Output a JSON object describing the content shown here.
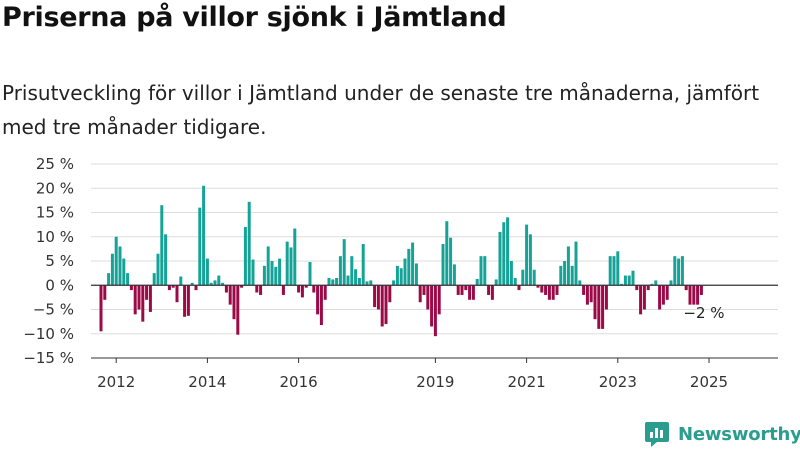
{
  "title": "Priserna på villor sjönk i Jämtland",
  "subtitle": "Prisutveckling för villor i Jämtland under de senaste tre månaderna, jämfört med tre månader tidigare.",
  "brand": "Newsworthy",
  "colors": {
    "positive": "#16a397",
    "negative": "#9b0a47",
    "axis": "#333333",
    "grid": "#dddddd",
    "brand": "#2a9d8f"
  },
  "chart_data": {
    "type": "bar",
    "y_unit": "%",
    "ylim": [
      -15,
      25
    ],
    "y_ticks": [
      25,
      20,
      15,
      10,
      5,
      0,
      -5,
      -10,
      -15
    ],
    "y_tick_labels": [
      "25 %",
      "20 %",
      "15 %",
      "10 %",
      "5 %",
      "0 %",
      "−5 %",
      "−10 %",
      "−15 %"
    ],
    "x_tick_labels": [
      "2012",
      "2014",
      "2016",
      "2019",
      "2021",
      "2023",
      "2025"
    ],
    "x_tick_index": [
      4,
      28,
      52,
      88,
      112,
      136,
      160
    ],
    "grid": true,
    "last_value_label": "−2 %",
    "values": [
      -9.5,
      -3,
      2.5,
      6.5,
      10,
      8,
      5.5,
      2.5,
      -1,
      -6,
      -5,
      -7.5,
      -3,
      -5.5,
      2.5,
      6.5,
      16.5,
      10.5,
      -1,
      -0.5,
      -3.5,
      1.8,
      -6.5,
      -6.3,
      0.5,
      -1,
      16,
      20.5,
      5.5,
      0.5,
      1,
      2,
      0.5,
      -1.5,
      -4,
      -7,
      -10.2,
      -0.5,
      12,
      17.2,
      5.3,
      -1.5,
      -2,
      4,
      8,
      5,
      3.8,
      5.5,
      -2,
      9,
      7.8,
      11.7,
      -1.5,
      -2.5,
      -0.5,
      4.8,
      -1.5,
      -6,
      -8.2,
      -3,
      1.5,
      1.2,
      1.5,
      6,
      9.5,
      2,
      6,
      3.3,
      1.5,
      8.5,
      0.8,
      1,
      -4.5,
      -5,
      -8.5,
      -8,
      -3.5,
      1,
      4,
      3.5,
      5.5,
      7.5,
      8.8,
      4.5,
      -3.5,
      -2,
      -5,
      -8.5,
      -10.5,
      -6,
      8.5,
      13.2,
      9.8,
      4.3,
      -2,
      -2,
      -1,
      -3,
      -3,
      1.3,
      6,
      6,
      -2,
      -3,
      1.2,
      11,
      13,
      14,
      5,
      1.5,
      -1,
      3.2,
      12.5,
      10.5,
      3.2,
      -0.5,
      -1.5,
      -2,
      -3,
      -3,
      -2,
      4,
      5,
      8,
      4,
      9,
      1,
      -2,
      -4,
      -3.5,
      -7,
      -9,
      -9,
      -5,
      6,
      6,
      7,
      0.3,
      2,
      2,
      3,
      -1,
      -6,
      -5,
      -1,
      0.3,
      1,
      -5,
      -4,
      -3,
      1,
      6,
      5.5,
      6,
      -1,
      -4,
      -4,
      -4,
      -2
    ]
  }
}
